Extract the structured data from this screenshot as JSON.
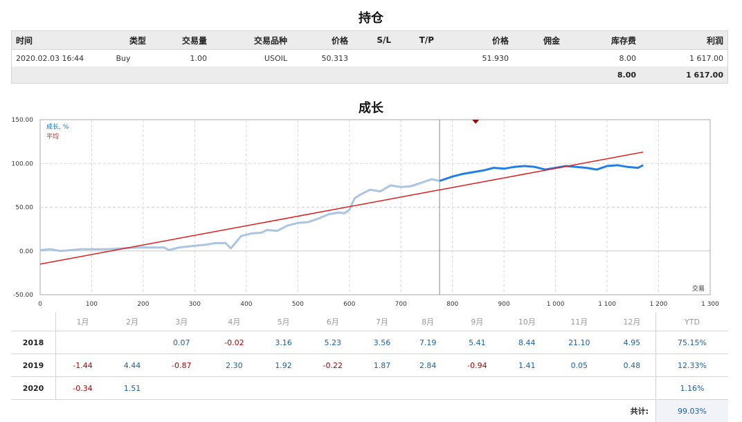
{
  "positions": {
    "title": "持仓",
    "headers": [
      "时间",
      "类型",
      "交易量",
      "交易品种",
      "价格",
      "S/L",
      "T/P",
      "价格",
      "佣金",
      "库存费",
      "利润"
    ],
    "rows": [
      {
        "time": "2020.02.03 16:44",
        "type": "Buy",
        "volume": "1.00",
        "symbol": "USOIL",
        "open_price": "50.313",
        "sl": "",
        "tp": "",
        "price": "51.930",
        "commission": "",
        "swap": "8.00",
        "profit": "1 617.00"
      }
    ],
    "totals": {
      "swap": "8.00",
      "profit": "1 617.00"
    }
  },
  "growth": {
    "title": "成长",
    "legend_growth": "成长, %",
    "legend_avg": "平均",
    "x_axis_label": "交易",
    "y_ticks": [
      "150.00",
      "100.00",
      "50.00",
      "0.00",
      "-50.00"
    ],
    "x_ticks": [
      "0",
      "100",
      "200",
      "300",
      "400",
      "500",
      "600",
      "700",
      "800",
      "900",
      "1 000",
      "1 100",
      "1 200",
      "1 300"
    ]
  },
  "chart_data": {
    "type": "line",
    "title": "成长",
    "xlabel": "交易",
    "ylabel": "",
    "xlim": [
      0,
      1300
    ],
    "ylim": [
      -50,
      150
    ],
    "grid": true,
    "legend": "top-left",
    "colors": {
      "history": "#aac4e2",
      "recent": "#1f7fe6",
      "average": "#e01b1b",
      "marker": "#b00000"
    },
    "divider_x": 775,
    "marker_x": 845,
    "series": [
      {
        "name": "成长, %",
        "x": [
          0,
          20,
          40,
          60,
          80,
          100,
          130,
          160,
          190,
          210,
          240,
          250,
          270,
          300,
          320,
          340,
          360,
          370,
          390,
          410,
          430,
          440,
          460,
          480,
          500,
          520,
          540,
          560,
          580,
          590,
          600,
          610,
          620,
          640,
          660,
          680,
          700,
          720,
          740,
          760,
          775,
          800,
          820,
          840,
          860,
          880,
          900,
          920,
          940,
          960,
          980,
          1000,
          1020,
          1040,
          1060,
          1080,
          1100,
          1120,
          1140,
          1160,
          1170
        ],
        "y": [
          1,
          2,
          0,
          1,
          2,
          2,
          2,
          3,
          4,
          4,
          4,
          1,
          4,
          6,
          7,
          9,
          9,
          3,
          17,
          20,
          21,
          24,
          23,
          29,
          32,
          33,
          37,
          42,
          44,
          43,
          47,
          60,
          64,
          70,
          68,
          75,
          73,
          74,
          78,
          82,
          80,
          85,
          88,
          90,
          92,
          95,
          94,
          96,
          97,
          96,
          93,
          95,
          97,
          96,
          95,
          93,
          97,
          98,
          96,
          95,
          98
        ]
      },
      {
        "name": "平均",
        "x": [
          0,
          1170
        ],
        "y": [
          -15,
          113
        ]
      }
    ]
  },
  "monthly": {
    "months": [
      "1月",
      "2月",
      "3月",
      "4月",
      "5月",
      "6月",
      "7月",
      "8月",
      "9月",
      "10月",
      "11月",
      "12月"
    ],
    "ytd_label": "YTD",
    "rows": [
      {
        "year": "2018",
        "values": [
          "",
          "",
          "0.07",
          "-0.02",
          "3.16",
          "5.23",
          "3.56",
          "7.19",
          "5.41",
          "8.44",
          "21.10",
          "4.95"
        ],
        "ytd": "75.15%"
      },
      {
        "year": "2019",
        "values": [
          "-1.44",
          "4.44",
          "-0.87",
          "2.30",
          "1.92",
          "-0.22",
          "1.87",
          "2.84",
          "-0.94",
          "1.41",
          "0.05",
          "0.48"
        ],
        "ytd": "12.33%"
      },
      {
        "year": "2020",
        "values": [
          "-0.34",
          "1.51",
          "",
          "",
          "",
          "",
          "",
          "",
          "",
          "",
          "",
          ""
        ],
        "ytd": "1.16%"
      }
    ],
    "total_label": "共计:",
    "total_value": "99.03%"
  }
}
